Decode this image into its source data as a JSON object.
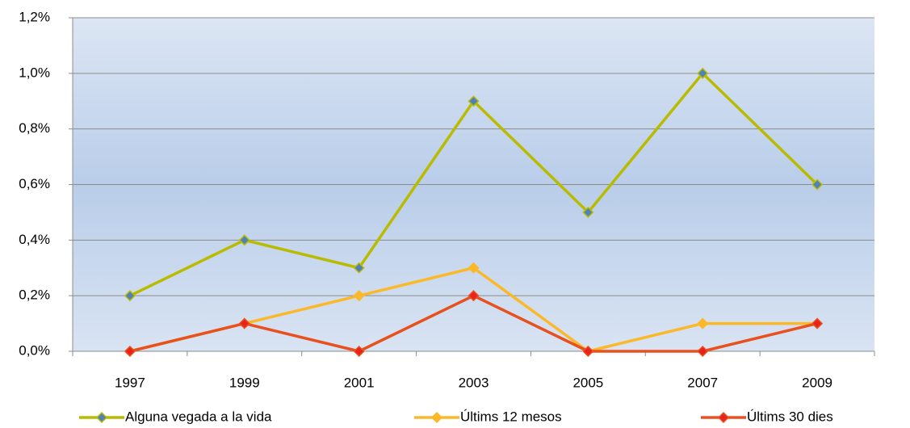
{
  "chart_data": {
    "type": "line",
    "categories": [
      "1997",
      "1999",
      "2001",
      "2003",
      "2005",
      "2007",
      "2009"
    ],
    "series": [
      {
        "name": "Alguna vegada a la vida",
        "color": "#b9bb00",
        "marker_color": "#4f81bd",
        "values": [
          0.2,
          0.4,
          0.3,
          0.9,
          0.5,
          1.0,
          0.6
        ]
      },
      {
        "name": "Últims 12 mesos",
        "color": "#fbb829",
        "marker_color": "#fbb829",
        "values": [
          0,
          0.1,
          0.2,
          0.3,
          0,
          0.1,
          0.1
        ]
      },
      {
        "name": "Últims 30 dies",
        "color": "#e8501e",
        "marker_color": "#e8221c",
        "values": [
          0,
          0.1,
          0,
          0.2,
          0,
          0,
          0.1
        ]
      }
    ],
    "ylim": [
      0,
      1.2
    ],
    "yticks": [
      {
        "value": 0,
        "label": "0,0%"
      },
      {
        "value": 0.2,
        "label": "0,2%"
      },
      {
        "value": 0.4,
        "label": "0,4%"
      },
      {
        "value": 0.6,
        "label": "0,6%"
      },
      {
        "value": 0.8,
        "label": "0,8%"
      },
      {
        "value": 1.0,
        "label": "1,0%"
      },
      {
        "value": 1.2,
        "label": "1,2%"
      }
    ],
    "grid": true,
    "legend": "bottom"
  }
}
